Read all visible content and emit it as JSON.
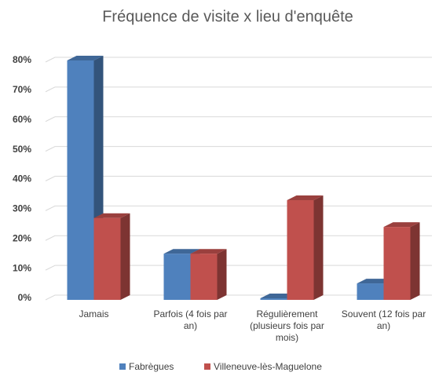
{
  "chart_data": {
    "type": "bar3d",
    "title": "Fréquence de visite x lieu d'enquête",
    "categories": [
      "Jamais",
      "Parfois (4 fois par an)",
      "Régulièrement (plusieurs fois par mois)",
      "Souvent (12 fois par an)"
    ],
    "series": [
      {
        "name": "Fabrègues",
        "color": "#4f81bd",
        "values": [
          80,
          15,
          0,
          5
        ]
      },
      {
        "name": "Villeneuve-lès-Maguelone",
        "color": "#c0504d",
        "values": [
          27,
          15,
          33,
          24
        ]
      }
    ],
    "ylim": [
      0,
      80
    ],
    "yticks": [
      {
        "value": 0,
        "label": "0%"
      },
      {
        "value": 10,
        "label": "10%"
      },
      {
        "value": 20,
        "label": "20%"
      },
      {
        "value": 30,
        "label": "30%"
      },
      {
        "value": 40,
        "label": "40%"
      },
      {
        "value": 50,
        "label": "50%"
      },
      {
        "value": 60,
        "label": "60%"
      },
      {
        "value": 70,
        "label": "70%"
      },
      {
        "value": 80,
        "label": "80%"
      }
    ],
    "grid": true,
    "legend": "bottom"
  }
}
